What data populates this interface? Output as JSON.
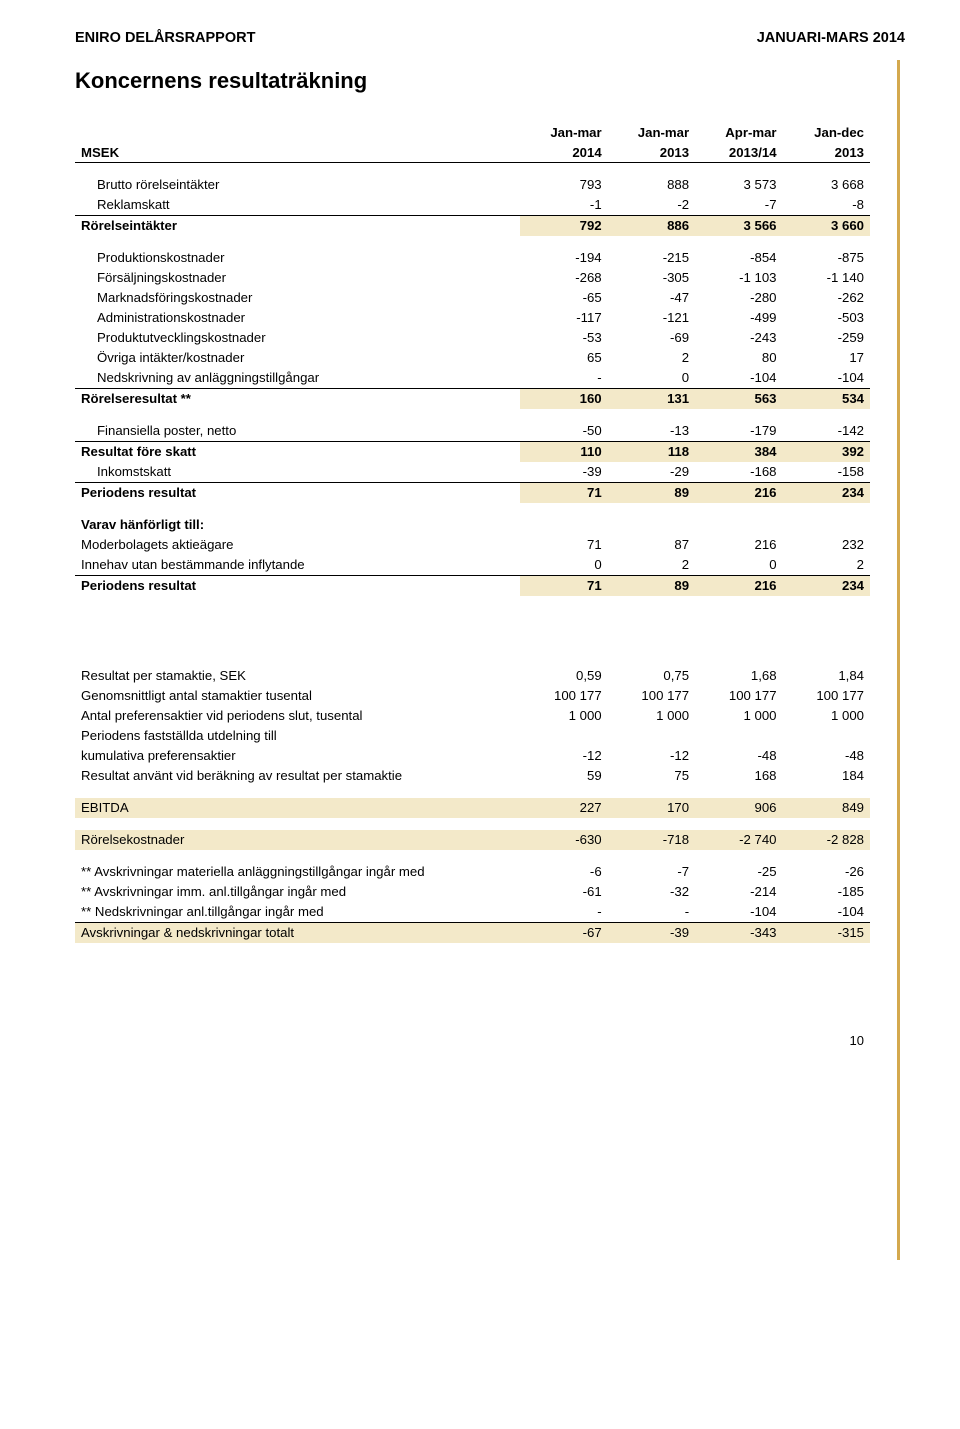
{
  "header": {
    "left": "ENIRO DELÅRSRAPPORT",
    "right": "JANUARI-MARS 2014"
  },
  "section_title": "Koncernens resultaträkning",
  "columns": {
    "period": [
      "",
      "Jan-mar",
      "Jan-mar",
      "Apr-mar",
      "Jan-dec"
    ],
    "years": [
      "MSEK",
      "2014",
      "2013",
      "2013/14",
      "2013"
    ]
  },
  "rows": [
    {
      "label": "Brutto rörelseintäkter",
      "v": [
        "793",
        "888",
        "3 573",
        "3 668"
      ],
      "indent": 1
    },
    {
      "label": "Reklamskatt",
      "v": [
        "-1",
        "-2",
        "-7",
        "-8"
      ],
      "indent": 1,
      "line": true
    },
    {
      "label": "Rörelseintäkter",
      "v": [
        "792",
        "886",
        "3 566",
        "3 660"
      ],
      "bold": true,
      "hl": true
    },
    {
      "spacer": true
    },
    {
      "label": "Produktionskostnader",
      "v": [
        "-194",
        "-215",
        "-854",
        "-875"
      ],
      "indent": 1
    },
    {
      "label": "Försäljningskostnader",
      "v": [
        "-268",
        "-305",
        "-1 103",
        "-1 140"
      ],
      "indent": 1
    },
    {
      "label": "Marknadsföringskostnader",
      "v": [
        "-65",
        "-47",
        "-280",
        "-262"
      ],
      "indent": 1
    },
    {
      "label": "Administrationskostnader",
      "v": [
        "-117",
        "-121",
        "-499",
        "-503"
      ],
      "indent": 1
    },
    {
      "label": "Produktutvecklingskostnader",
      "v": [
        "-53",
        "-69",
        "-243",
        "-259"
      ],
      "indent": 1
    },
    {
      "label": "Övriga intäkter/kostnader",
      "v": [
        "65",
        "2",
        "80",
        "17"
      ],
      "indent": 1
    },
    {
      "label": "Nedskrivning av anläggningstillgångar",
      "v": [
        "-",
        "0",
        "-104",
        "-104"
      ],
      "indent": 1,
      "line": true
    },
    {
      "label": "Rörelseresultat **",
      "v": [
        "160",
        "131",
        "563",
        "534"
      ],
      "bold": true,
      "hl": true
    },
    {
      "spacer": true
    },
    {
      "label": "Finansiella poster, netto",
      "v": [
        "-50",
        "-13",
        "-179",
        "-142"
      ],
      "indent": 1,
      "line": true
    },
    {
      "label": "Resultat före skatt",
      "v": [
        "110",
        "118",
        "384",
        "392"
      ],
      "bold": true,
      "hl": true
    },
    {
      "label": "Inkomstskatt",
      "v": [
        "-39",
        "-29",
        "-168",
        "-158"
      ],
      "indent": 1,
      "line": true
    },
    {
      "label": "Periodens resultat",
      "v": [
        "71",
        "89",
        "216",
        "234"
      ],
      "bold": true,
      "hl": true
    },
    {
      "spacer": true
    },
    {
      "label": "Varav hänförligt till:",
      "v": [
        "",
        "",
        "",
        ""
      ],
      "bold": true
    },
    {
      "label": "Moderbolagets aktieägare",
      "v": [
        "71",
        "87",
        "216",
        "232"
      ]
    },
    {
      "label": "Innehav utan bestämmande inflytande",
      "v": [
        "0",
        "2",
        "0",
        "2"
      ],
      "line": true
    },
    {
      "label": "Periodens resultat",
      "v": [
        "71",
        "89",
        "216",
        "234"
      ],
      "bold": true,
      "hl": true
    }
  ],
  "rows2": [
    {
      "label": "Resultat per stamaktie, SEK",
      "v": [
        "0,59",
        "0,75",
        "1,68",
        "1,84"
      ]
    },
    {
      "label": "Genomsnittligt antal stamaktier tusental",
      "v": [
        "100 177",
        "100 177",
        "100 177",
        "100 177"
      ]
    },
    {
      "label": "Antal preferensaktier vid periodens slut, tusental",
      "v": [
        "1 000",
        "1 000",
        "1 000",
        "1 000"
      ]
    },
    {
      "label": "Periodens fastställda utdelning till",
      "v": [
        "",
        "",
        "",
        ""
      ]
    },
    {
      "label": "kumulativa preferensaktier",
      "v": [
        "-12",
        "-12",
        "-48",
        "-48"
      ]
    },
    {
      "label": "Resultat använt vid beräkning av resultat per stamaktie",
      "v": [
        "59",
        "75",
        "168",
        "184"
      ]
    },
    {
      "spacer": true
    },
    {
      "label": "EBITDA",
      "v": [
        "227",
        "170",
        "906",
        "849"
      ],
      "hlfull": true
    },
    {
      "spacer": true
    },
    {
      "label": "Rörelsekostnader",
      "v": [
        "-630",
        "-718",
        "-2 740",
        "-2 828"
      ],
      "hlfull": true
    },
    {
      "spacer": true
    },
    {
      "label": "** Avskrivningar materiella anläggningstillgångar ingår med",
      "v": [
        "-6",
        "-7",
        "-25",
        "-26"
      ]
    },
    {
      "label": "** Avskrivningar imm. anl.tillgångar ingår med",
      "v": [
        "-61",
        "-32",
        "-214",
        "-185"
      ]
    },
    {
      "label": "** Nedskrivningar anl.tillgångar ingår med",
      "v": [
        "-",
        "-",
        "-104",
        "-104"
      ]
    },
    {
      "label": "   Avskrivningar & nedskrivningar totalt",
      "v": [
        "-67",
        "-39",
        "-343",
        "-315"
      ],
      "hlfull": true,
      "topline": true
    }
  ],
  "page_number": "10",
  "colors": {
    "accent_bar": "#d4a94e",
    "highlight_bg": "#f3e9c9",
    "text": "#000000",
    "border": "#000000"
  }
}
